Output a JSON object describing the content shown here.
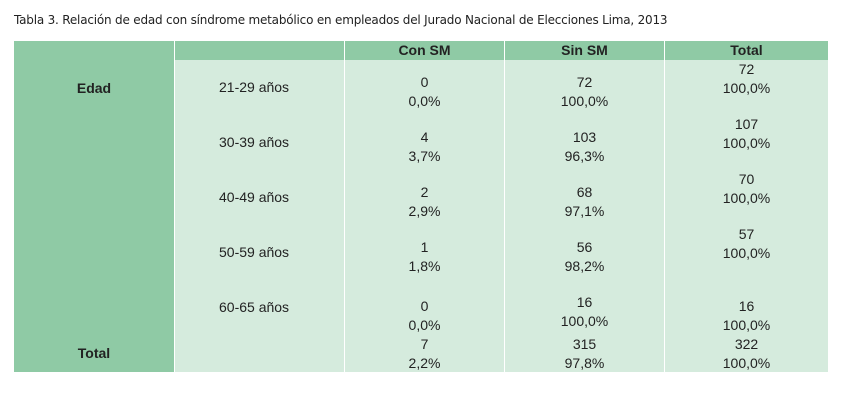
{
  "caption": "Tabla 3. Relación de edad con síndrome metabólico en empleados del Jurado Nacional de Elecciones Lima, 2013",
  "header": [
    "Con SM",
    "Sin SM",
    "Total"
  ],
  "group_label": "Edad",
  "rows": [
    {
      "label": "21-29 años",
      "cells": [
        [
          0,
          "0,0%"
        ],
        [
          72,
          "100,0%"
        ],
        [
          72,
          "100,0%"
        ]
      ]
    },
    {
      "label": "30-39 años",
      "cells": [
        [
          4,
          "3,7%"
        ],
        [
          103,
          "96,3%"
        ],
        [
          107,
          "100,0%"
        ]
      ]
    },
    {
      "label": "40-49 años",
      "cells": [
        [
          2,
          "2,9%"
        ],
        [
          68,
          "97,1%"
        ],
        [
          70,
          "100,0%"
        ]
      ]
    },
    {
      "label": "50-59 años",
      "cells": [
        [
          1,
          "1,8%"
        ],
        [
          56,
          "98,2%"
        ],
        [
          57,
          "100,0%"
        ]
      ]
    },
    {
      "label": "60-65 años",
      "cells": [
        [
          0,
          "0,0%"
        ],
        [
          16,
          "100,0%"
        ],
        [
          16,
          "100,0%"
        ]
      ]
    }
  ],
  "total": {
    "label": "Total",
    "cells": [
      [
        7,
        "2,2%"
      ],
      [
        315,
        "97,8%"
      ],
      [
        322,
        "100,0%"
      ]
    ]
  }
}
